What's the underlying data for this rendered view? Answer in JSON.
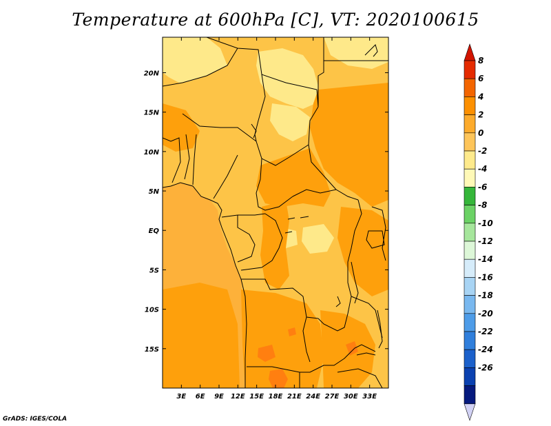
{
  "title": "Temperature at 600hPa [C], VT: 2020100615",
  "footer": "GrADS: IGES/COLA",
  "map": {
    "lon_range": [
      0,
      36
    ],
    "lat_range": [
      -20,
      24.5
    ],
    "lon_ticks": [
      {
        "value": 3,
        "label": "3E"
      },
      {
        "value": 6,
        "label": "6E"
      },
      {
        "value": 9,
        "label": "9E"
      },
      {
        "value": 12,
        "label": "12E"
      },
      {
        "value": 15,
        "label": "15E"
      },
      {
        "value": 18,
        "label": "18E"
      },
      {
        "value": 21,
        "label": "21E"
      },
      {
        "value": 24,
        "label": "24E"
      },
      {
        "value": 27,
        "label": "27E"
      },
      {
        "value": 30,
        "label": "30E"
      },
      {
        "value": 33,
        "label": "33E"
      }
    ],
    "lat_ticks": [
      {
        "value": 20,
        "label": "20N"
      },
      {
        "value": 15,
        "label": "15N"
      },
      {
        "value": 10,
        "label": "10N"
      },
      {
        "value": 5,
        "label": "5N"
      },
      {
        "value": 0,
        "label": "EQ"
      },
      {
        "value": -5,
        "label": "5S"
      },
      {
        "value": -10,
        "label": "10S"
      },
      {
        "value": -15,
        "label": "15S"
      }
    ],
    "colors": {
      "ocean": "#fdb13a",
      "light": "#fee98a",
      "mid": "#fdc447",
      "dark": "#fea00c",
      "hot": "#ff7f10",
      "border": "#000000"
    }
  },
  "colorbar": {
    "labels": [
      "8",
      "6",
      "4",
      "2",
      "0",
      "-2",
      "-4",
      "-6",
      "-8",
      "-10",
      "-12",
      "-14",
      "-16",
      "-18",
      "-20",
      "-22",
      "-24",
      "-26"
    ],
    "colors": [
      "#e52b00",
      "#f36500",
      "#fd9000",
      "#fdab2c",
      "#fec55a",
      "#feea8c",
      "#fff9b7",
      "#35b63a",
      "#6bd265",
      "#a6e69c",
      "#ddf7d8",
      "#d6ecfa",
      "#a8d4f4",
      "#79b8ef",
      "#4e9ce8",
      "#307fdc",
      "#1c61cb",
      "#0b41b0",
      "#061a7e"
    ],
    "top_color": "#d21400",
    "bottom_color": "#d2d2f5"
  }
}
